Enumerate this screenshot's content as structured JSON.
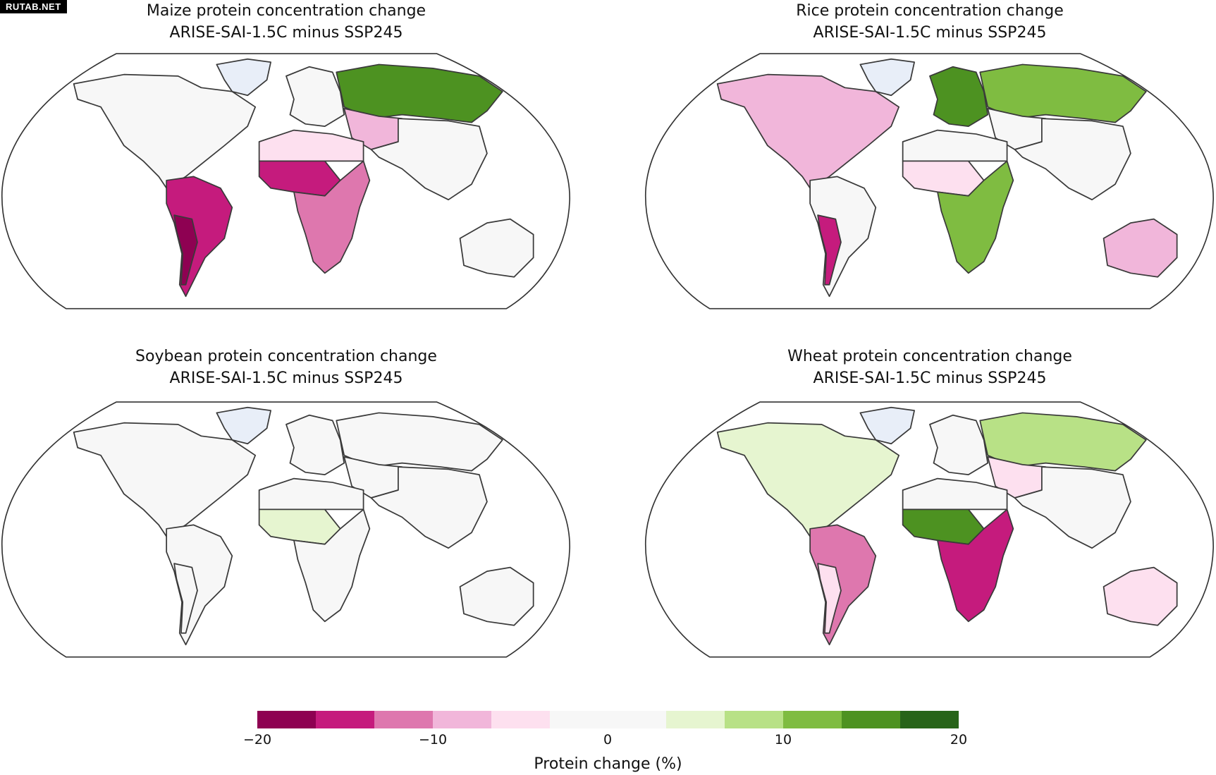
{
  "watermark": "RUTAB.NET",
  "panels": [
    {
      "title": "Maize protein concentration change",
      "subtitle": "ARISE-SAI-1.5C minus SSP245",
      "fills": {
        "north_america": "#f7f7f7",
        "greenland": "#e8eef8",
        "south_america": "#c51b7d",
        "south_america_west": "#8e0152",
        "europe": "#f7f7f7",
        "russia": "#4d9221",
        "central_asia": "#f1b6da",
        "asia": "#f7f7f7",
        "north_africa": "#fde0ef",
        "west_africa": "#c51b7d",
        "southern_africa": "#de77ae",
        "australia": "#f7f7f7"
      }
    },
    {
      "title": "Rice protein concentration change",
      "subtitle": "ARISE-SAI-1.5C minus SSP245",
      "fills": {
        "north_america": "#f1b6da",
        "greenland": "#e8eef8",
        "south_america": "#f7f7f7",
        "south_america_west": "#c51b7d",
        "europe": "#4d9221",
        "russia": "#7fbc41",
        "central_asia": "#f7f7f7",
        "asia": "#f7f7f7",
        "north_africa": "#f7f7f7",
        "west_africa": "#fde0ef",
        "southern_africa": "#7fbc41",
        "australia": "#f1b6da"
      }
    },
    {
      "title": "Soybean protein concentration change",
      "subtitle": "ARISE-SAI-1.5C minus SSP245",
      "fills": {
        "north_america": "#f7f7f7",
        "greenland": "#e8eef8",
        "south_america": "#f7f7f7",
        "south_america_west": "#f7f7f7",
        "europe": "#f7f7f7",
        "russia": "#f7f7f7",
        "central_asia": "#f7f7f7",
        "asia": "#f7f7f7",
        "north_africa": "#f7f7f7",
        "west_africa": "#e6f5d0",
        "southern_africa": "#f7f7f7",
        "australia": "#f7f7f7"
      }
    },
    {
      "title": "Wheat protein concentration change",
      "subtitle": "ARISE-SAI-1.5C minus SSP245",
      "fills": {
        "north_america": "#e6f5d0",
        "greenland": "#e8eef8",
        "south_america": "#de77ae",
        "south_america_west": "#fde0ef",
        "europe": "#f7f7f7",
        "russia": "#b8e186",
        "central_asia": "#fde0ef",
        "asia": "#f7f7f7",
        "north_africa": "#f7f7f7",
        "west_africa": "#4d9221",
        "southern_africa": "#c51b7d",
        "australia": "#fde0ef"
      }
    }
  ],
  "colorbar": {
    "label": "Protein change (%)",
    "min": -20,
    "max": 20,
    "ticks": [
      {
        "value": -20,
        "label": "−20"
      },
      {
        "value": -10,
        "label": "−10"
      },
      {
        "value": 0,
        "label": "0"
      },
      {
        "value": 10,
        "label": "10"
      },
      {
        "value": 20,
        "label": "20"
      }
    ],
    "colors": [
      "#8e0152",
      "#c51b7d",
      "#de77ae",
      "#f1b6da",
      "#fde0ef",
      "#f7f7f7",
      "#f7f7f7",
      "#e6f5d0",
      "#b8e186",
      "#7fbc41",
      "#4d9221",
      "#276419"
    ]
  }
}
